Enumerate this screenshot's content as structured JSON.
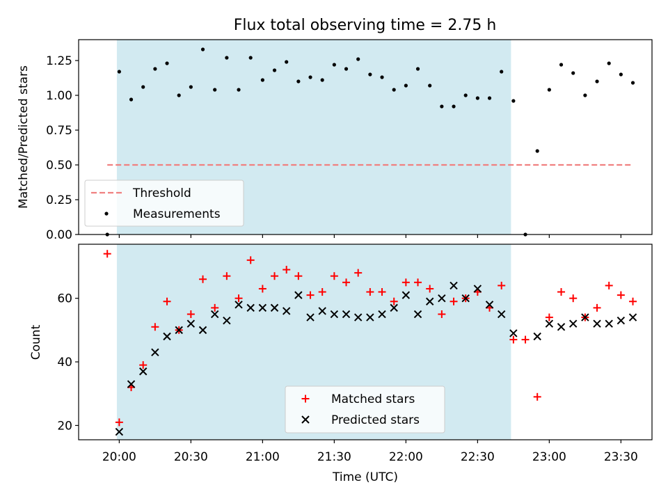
{
  "chart_data": [
    {
      "type": "scatter",
      "title": "Flux total observing time = 2.75 h",
      "ylabel": "Matched/Predicted stars",
      "ylim": [
        0,
        1.4
      ],
      "yticks": [
        "0.00",
        "0.25",
        "0.50",
        "0.75",
        "1.00",
        "1.25"
      ],
      "ytick_values": [
        0,
        0.25,
        0.5,
        0.75,
        1.0,
        1.25
      ],
      "xlim": [
        "19:43",
        "23:43"
      ],
      "shaded_region": [
        "19:59",
        "22:44"
      ],
      "shade_color": "#add8e6",
      "threshold": {
        "name": "Threshold",
        "y": 0.5,
        "x": [
          "19:55",
          "23:35"
        ],
        "color": "#f08080"
      },
      "legend_placement": "lower-left",
      "series": [
        {
          "name": "Measurements",
          "color": "#000000",
          "x": [
            "19:55",
            "20:00",
            "20:05",
            "20:10",
            "20:15",
            "20:20",
            "20:25",
            "20:30",
            "20:35",
            "20:40",
            "20:45",
            "20:50",
            "20:55",
            "21:00",
            "21:05",
            "21:10",
            "21:15",
            "21:20",
            "21:25",
            "21:30",
            "21:35",
            "21:40",
            "21:45",
            "21:50",
            "21:55",
            "22:00",
            "22:05",
            "22:10",
            "22:15",
            "22:20",
            "22:25",
            "22:30",
            "22:35",
            "22:40",
            "22:45",
            "22:50",
            "22:55",
            "23:00",
            "23:05",
            "23:10",
            "23:15",
            "23:20",
            "23:25",
            "23:30",
            "23:35"
          ],
          "y": [
            0.0,
            1.17,
            0.97,
            1.06,
            1.19,
            1.23,
            1.0,
            1.06,
            1.33,
            1.04,
            1.27,
            1.04,
            1.27,
            1.11,
            1.18,
            1.24,
            1.1,
            1.13,
            1.11,
            1.22,
            1.19,
            1.26,
            1.15,
            1.13,
            1.04,
            1.07,
            1.19,
            1.07,
            0.92,
            0.92,
            1.0,
            0.98,
            0.98,
            1.17,
            0.96,
            0.0,
            0.6,
            1.04,
            1.22,
            1.16,
            1.0,
            1.1,
            1.23,
            1.15,
            1.09
          ]
        }
      ]
    },
    {
      "type": "scatter",
      "xlabel": "Time (UTC)",
      "ylabel": "Count",
      "ylim": [
        15.5,
        77
      ],
      "yticks": [
        "20",
        "40",
        "60"
      ],
      "ytick_values": [
        20,
        40,
        60
      ],
      "xlim": [
        "19:43",
        "23:43"
      ],
      "xticks": [
        "20:00",
        "20:30",
        "21:00",
        "21:30",
        "22:00",
        "22:30",
        "23:00",
        "23:30"
      ],
      "shaded_region": [
        "19:59",
        "22:44"
      ],
      "shade_color": "#add8e6",
      "legend_placement": "lower-center",
      "series": [
        {
          "name": "Matched stars",
          "marker": "+",
          "color": "#ff0000",
          "x": [
            "19:55",
            "20:00",
            "20:05",
            "20:10",
            "20:15",
            "20:20",
            "20:25",
            "20:30",
            "20:35",
            "20:40",
            "20:45",
            "20:50",
            "20:55",
            "21:00",
            "21:05",
            "21:10",
            "21:15",
            "21:20",
            "21:25",
            "21:30",
            "21:35",
            "21:40",
            "21:45",
            "21:50",
            "21:55",
            "22:00",
            "22:05",
            "22:10",
            "22:15",
            "22:20",
            "22:25",
            "22:30",
            "22:35",
            "22:40",
            "22:45",
            "22:50",
            "22:55",
            "23:00",
            "23:05",
            "23:10",
            "23:15",
            "23:20",
            "23:25",
            "23:30",
            "23:35"
          ],
          "y": [
            74,
            21,
            32,
            39,
            51,
            59,
            50,
            55,
            66,
            57,
            67,
            60,
            72,
            63,
            67,
            69,
            67,
            61,
            62,
            67,
            65,
            68,
            62,
            62,
            59,
            65,
            65,
            63,
            55,
            59,
            60,
            62,
            57,
            64,
            47,
            47,
            29,
            54,
            62,
            60,
            54,
            57,
            64,
            61,
            59
          ]
        },
        {
          "name": "Predicted stars",
          "marker": "x",
          "color": "#000000",
          "x": [
            "20:00",
            "20:05",
            "20:10",
            "20:15",
            "20:20",
            "20:25",
            "20:30",
            "20:35",
            "20:40",
            "20:45",
            "20:50",
            "20:55",
            "21:00",
            "21:05",
            "21:10",
            "21:15",
            "21:20",
            "21:25",
            "21:30",
            "21:35",
            "21:40",
            "21:45",
            "21:50",
            "21:55",
            "22:00",
            "22:05",
            "22:10",
            "22:15",
            "22:20",
            "22:25",
            "22:30",
            "22:35",
            "22:40",
            "22:45",
            "22:55",
            "23:00",
            "23:05",
            "23:10",
            "23:15",
            "23:20",
            "23:25",
            "23:30",
            "23:35"
          ],
          "y": [
            18,
            33,
            37,
            43,
            48,
            50,
            52,
            50,
            55,
            53,
            58,
            57,
            57,
            57,
            56,
            61,
            54,
            56,
            55,
            55,
            54,
            54,
            55,
            57,
            61,
            55,
            59,
            60,
            64,
            60,
            63,
            58,
            55,
            49,
            48,
            52,
            51,
            52,
            54,
            52,
            52,
            53,
            54
          ]
        }
      ]
    }
  ]
}
